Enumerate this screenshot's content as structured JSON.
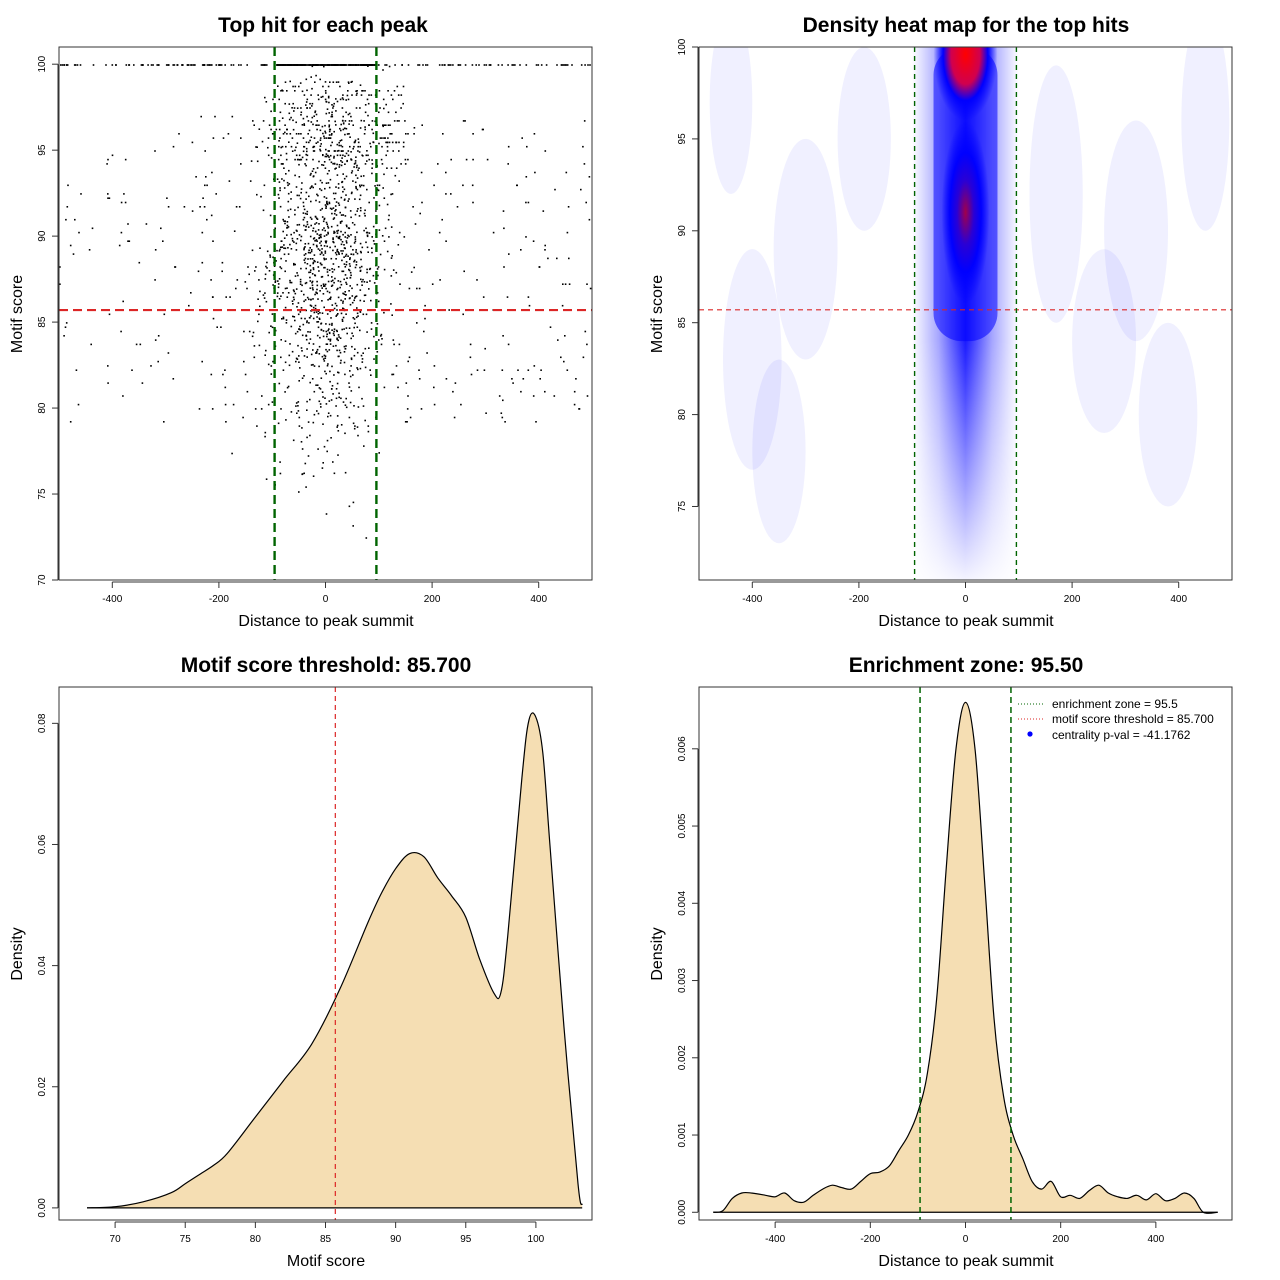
{
  "figure": {
    "background": "#ffffff"
  },
  "chart_data": [
    {
      "id": "p1",
      "type": "scatter",
      "title": "Top hit for each peak",
      "xlabel": "Distance to peak summit",
      "ylabel": "Motif score",
      "xlim": [
        -500,
        500
      ],
      "ylim": [
        70,
        101
      ],
      "xticks": [
        -400,
        -200,
        0,
        200,
        400
      ],
      "yticks": [
        70,
        75,
        80,
        85,
        90,
        95,
        100
      ],
      "threshold_line": {
        "y": 85.7,
        "color": "#dc2626"
      },
      "enrichment_lines": {
        "x": [
          -95.5,
          95.5
        ],
        "color": "#006400"
      },
      "point_color": "#000000",
      "point_clusters": [
        {
          "x_center": 0,
          "x_spread": 500,
          "y_center": 88,
          "y_spread": 9,
          "n": 420,
          "shape": "uniform"
        },
        {
          "x_center": 0,
          "x_spread": 55,
          "y_center": 89,
          "y_spread": 5.5,
          "n": 1250,
          "shape": "normal"
        },
        {
          "x_center": 30,
          "x_spread": 120,
          "y_center": 96.5,
          "y_spread": 2.5,
          "n": 220,
          "shape": "uniform"
        },
        {
          "x_center": 0,
          "x_spread": 500,
          "y_center": 100,
          "y_spread": 0,
          "n": 160,
          "shape": "uniform"
        },
        {
          "x_center": 0,
          "x_spread": 95,
          "y_center": 100,
          "y_spread": 0,
          "n": 260,
          "shape": "uniform"
        }
      ],
      "summary": "Dense vertical band of points centred at distance 0, with a saturated row at score 100 and sparse background points across -500..500"
    },
    {
      "id": "p2",
      "type": "heatmap",
      "title": "Density heat map for the top hits",
      "xlabel": "Distance to peak summit",
      "ylabel": "Motif score",
      "xlim": [
        -500,
        500
      ],
      "ylim": [
        71,
        100
      ],
      "xticks": [
        -400,
        -200,
        0,
        200,
        400
      ],
      "yticks": [
        75,
        80,
        85,
        90,
        95,
        100
      ],
      "threshold_line": {
        "y": 85.7,
        "color": "#dc2626"
      },
      "enrichment_lines": {
        "x": [
          -95.5,
          95.5
        ],
        "color": "#006400"
      },
      "colormap": [
        "#ffffff",
        "#0000ff",
        "#ff0000"
      ],
      "hotspots": [
        {
          "x": 0,
          "y": 99.5,
          "intensity": "max"
        },
        {
          "x": 0,
          "y": 91,
          "intensity": "high"
        }
      ]
    },
    {
      "id": "p3",
      "type": "area",
      "title": "Motif score threshold: 85.700",
      "xlabel": "Motif score",
      "ylabel": "Density",
      "xlim": [
        66,
        104
      ],
      "ylim": [
        -0.002,
        0.086
      ],
      "xticks": [
        70,
        75,
        80,
        85,
        90,
        95,
        100
      ],
      "yticks": [
        0.0,
        0.02,
        0.04,
        0.06,
        0.08
      ],
      "ytick_labels": [
        "0.00",
        "0.02",
        "0.04",
        "0.06",
        "0.08"
      ],
      "fill_color": "#f5deb3",
      "threshold_line": {
        "x": 85.7,
        "color": "#dc2626"
      },
      "x": [
        68,
        70,
        72,
        74,
        75,
        76,
        77,
        78,
        80,
        82,
        84,
        86,
        88,
        89,
        90,
        91,
        92,
        93,
        94,
        95,
        96,
        97,
        97.5,
        98,
        99,
        99.5,
        100,
        100.5,
        101,
        102,
        103,
        103.3
      ],
      "y": [
        0.0,
        0.0002,
        0.001,
        0.0025,
        0.004,
        0.0055,
        0.007,
        0.009,
        0.015,
        0.021,
        0.027,
        0.036,
        0.047,
        0.052,
        0.056,
        0.0585,
        0.058,
        0.0545,
        0.0515,
        0.048,
        0.041,
        0.0355,
        0.0355,
        0.045,
        0.071,
        0.0805,
        0.081,
        0.075,
        0.06,
        0.03,
        0.004,
        0.0005
      ]
    },
    {
      "id": "p4",
      "type": "area",
      "title": "Enrichment zone: 95.50",
      "xlabel": "Distance to peak summit",
      "ylabel": "Density",
      "xlim": [
        -560,
        560
      ],
      "ylim": [
        -0.0001,
        0.0068
      ],
      "xticks": [
        -400,
        -200,
        0,
        200,
        400
      ],
      "yticks": [
        0.0,
        0.001,
        0.002,
        0.003,
        0.004,
        0.005,
        0.006
      ],
      "ytick_labels": [
        "0.000",
        "0.001",
        "0.002",
        "0.003",
        "0.004",
        "0.005",
        "0.006"
      ],
      "fill_color": "#f5deb3",
      "enrichment_lines": {
        "x": [
          -95.5,
          95.5
        ],
        "color": "#006400"
      },
      "legend": {
        "position": "top-right",
        "entries": [
          {
            "label": "enrichment zone = 95.5",
            "marker": "dotted-line",
            "color": "#006400"
          },
          {
            "label": "motif score threshold = 85.700",
            "marker": "dotted-line",
            "color": "#dc2626"
          },
          {
            "label": "centrality p-val = -41.1762",
            "marker": "dot",
            "color": "#0000ff"
          }
        ]
      },
      "x": [
        -530,
        -510,
        -490,
        -470,
        -450,
        -420,
        -400,
        -380,
        -360,
        -340,
        -320,
        -300,
        -280,
        -260,
        -240,
        -220,
        -200,
        -180,
        -160,
        -140,
        -120,
        -100,
        -80,
        -60,
        -40,
        -20,
        0,
        20,
        40,
        60,
        80,
        100,
        120,
        140,
        160,
        180,
        200,
        220,
        240,
        260,
        280,
        300,
        320,
        340,
        360,
        380,
        400,
        420,
        440,
        460,
        480,
        500,
        530
      ],
      "y": [
        0.0,
        2e-05,
        0.00018,
        0.00025,
        0.00025,
        0.00022,
        0.0002,
        0.00025,
        0.00015,
        0.00013,
        0.00022,
        0.0003,
        0.00035,
        0.00032,
        0.0003,
        0.0004,
        0.0005,
        0.00052,
        0.0006,
        0.0008,
        0.001,
        0.0013,
        0.0018,
        0.0028,
        0.0045,
        0.006,
        0.0066,
        0.006,
        0.0043,
        0.0025,
        0.0015,
        0.001,
        0.0007,
        0.0004,
        0.0003,
        0.0004,
        0.0002,
        0.00022,
        0.00018,
        0.00028,
        0.00035,
        0.00025,
        0.0002,
        0.00018,
        0.00022,
        0.00016,
        0.00024,
        0.00015,
        0.00018,
        0.00025,
        0.00018,
        0.0,
        0.0
      ]
    }
  ]
}
